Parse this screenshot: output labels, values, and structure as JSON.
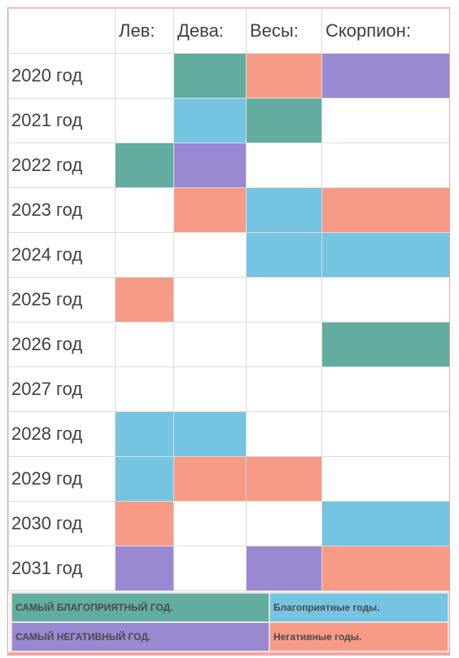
{
  "colors": {
    "best": "#62ad9f",
    "good": "#74c4e2",
    "worst": "#9b88d2",
    "bad": "#f79a86",
    "none": "#ffffff"
  },
  "header": [
    "",
    "Лев:",
    "Дева:",
    "Весы:",
    "Скорпион:"
  ],
  "rows": [
    {
      "year": "2020 год",
      "cells": [
        "none",
        "best",
        "bad",
        "worst"
      ]
    },
    {
      "year": "2021 год",
      "cells": [
        "none",
        "good",
        "best",
        "none"
      ]
    },
    {
      "year": "2022 год",
      "cells": [
        "best",
        "worst",
        "none",
        "none"
      ]
    },
    {
      "year": "2023 год",
      "cells": [
        "none",
        "bad",
        "good",
        "bad"
      ]
    },
    {
      "year": "2024 год",
      "cells": [
        "none",
        "none",
        "good",
        "good"
      ]
    },
    {
      "year": "2025 год",
      "cells": [
        "bad",
        "none",
        "none",
        "none"
      ]
    },
    {
      "year": "2026 год",
      "cells": [
        "none",
        "none",
        "none",
        "best"
      ]
    },
    {
      "year": "2027 год",
      "cells": [
        "none",
        "none",
        "none",
        "none"
      ]
    },
    {
      "year": "2028 год",
      "cells": [
        "good",
        "good",
        "none",
        "none"
      ]
    },
    {
      "year": "2029 год",
      "cells": [
        "good",
        "bad",
        "bad",
        "none"
      ]
    },
    {
      "year": "2030 год",
      "cells": [
        "bad",
        "none",
        "none",
        "good"
      ]
    },
    {
      "year": "2031 год",
      "cells": [
        "worst",
        "none",
        "worst",
        "bad"
      ]
    }
  ],
  "legend": {
    "best": "САМЫЙ БЛАГОПРИЯТНЫЙ ГОД.",
    "good": "Благоприятные годы.",
    "worst": "САМЫЙ НЕГАТИВНЫЙ ГОД.",
    "bad": "Негативные годы."
  }
}
